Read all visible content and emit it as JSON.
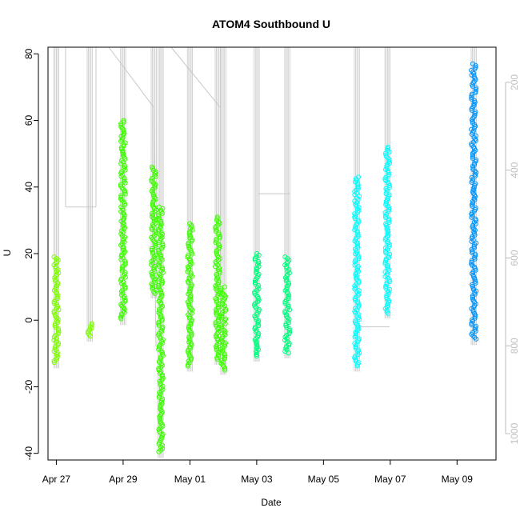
{
  "chart_data": {
    "type": "scatter",
    "title": "ATOM4 Southbound U",
    "xlabel": "Date",
    "ylabel": "U",
    "ylim": [
      -42,
      82
    ],
    "xlim": [
      "2021-04-26 18:00",
      "2021-05-10 04:00"
    ],
    "y_ticks": [
      -40,
      -20,
      0,
      20,
      40,
      60,
      80
    ],
    "x_ticks": [
      {
        "date": "2021-04-27",
        "label": "Apr 27"
      },
      {
        "date": "2021-04-29",
        "label": "Apr 29"
      },
      {
        "date": "2021-05-01",
        "label": "May 01"
      },
      {
        "date": "2021-05-03",
        "label": "May 03"
      },
      {
        "date": "2021-05-05",
        "label": "May 05"
      },
      {
        "date": "2021-05-07",
        "label": "May 07"
      },
      {
        "date": "2021-05-09",
        "label": "May 09"
      }
    ],
    "right_axis": {
      "ticks": [
        200,
        400,
        600,
        800,
        1000
      ],
      "range": [
        120,
        1060
      ],
      "reversed": true,
      "color": "#bebebe"
    },
    "grid": false,
    "series": [
      {
        "color": "#7FFF00",
        "points": [
          {
            "x": "2021-04-27 00:00",
            "ymin": -13,
            "ymax": 19,
            "gaps": []
          },
          {
            "x": "2021-04-28 00:00",
            "ymin": -5,
            "ymax": -1,
            "gaps": []
          }
        ]
      },
      {
        "color": "#3CFF00",
        "points": [
          {
            "x": "2021-04-29 00:00",
            "ymin": 0,
            "ymax": 60,
            "gaps": []
          },
          {
            "x": "2021-04-29 22:00",
            "ymin": 8,
            "ymax": 46,
            "gaps": []
          },
          {
            "x": "2021-04-30 03:00",
            "ymin": -40,
            "ymax": 34,
            "gaps": []
          },
          {
            "x": "2021-05-01 00:00",
            "ymin": -14,
            "ymax": 29,
            "gaps": []
          },
          {
            "x": "2021-05-01 20:00",
            "ymin": -12,
            "ymax": 31,
            "gaps": []
          },
          {
            "x": "2021-05-02 00:00",
            "ymin": -15,
            "ymax": 10,
            "gaps": []
          }
        ]
      },
      {
        "color": "#00FF80",
        "points": [
          {
            "x": "2021-05-03 00:00",
            "ymin": -11,
            "ymax": 20,
            "gaps": []
          },
          {
            "x": "2021-05-03 22:00",
            "ymin": -10,
            "ymax": 19,
            "gaps": []
          }
        ]
      },
      {
        "color": "#00FFFF",
        "points": [
          {
            "x": "2021-05-06 00:00",
            "ymin": -14,
            "ymax": 43,
            "gaps": []
          },
          {
            "x": "2021-05-06 22:00",
            "ymin": 2,
            "ymax": 52,
            "gaps": []
          }
        ]
      },
      {
        "color": "#0096FF",
        "points": [
          {
            "x": "2021-05-09 12:00",
            "ymin": -6,
            "ymax": 77,
            "gaps": []
          }
        ]
      }
    ]
  }
}
